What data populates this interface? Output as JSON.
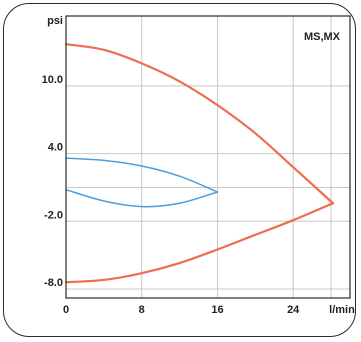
{
  "chart_data": {
    "type": "line",
    "title": "",
    "xlabel": "l/min",
    "ylabel": "psi",
    "annotation": "MS,MX",
    "xlim": [
      0,
      30
    ],
    "ylim": [
      -8.8,
      16.2
    ],
    "x_ticks": [
      {
        "value": 0,
        "label": "0"
      },
      {
        "value": 8,
        "label": "8"
      },
      {
        "value": 16,
        "label": "16"
      },
      {
        "value": 24,
        "label": "24"
      }
    ],
    "y_ticks": [
      {
        "value": 10.0,
        "label": "10.0"
      },
      {
        "value": 4.0,
        "label": "4.0"
      },
      {
        "value": -2.0,
        "label": "-2.0"
      },
      {
        "value": -8.0,
        "label": "-8.0"
      }
    ],
    "x_unit_label": "l/min",
    "y_unit_label": "psi",
    "grid": true,
    "colors": {
      "orange": "#ee6d4f",
      "blue": "#4a9ee0",
      "grid": "#c8c8c8",
      "frame": "#2b2b2b"
    },
    "series": [
      {
        "color": "orange",
        "points": [
          [
            0,
            13.7
          ],
          [
            4,
            13.2
          ],
          [
            8,
            12.0
          ],
          [
            12,
            10.4
          ],
          [
            16,
            8.3
          ],
          [
            20,
            5.8
          ],
          [
            24,
            2.8
          ],
          [
            28.2,
            -0.4
          ]
        ]
      },
      {
        "color": "orange",
        "points": [
          [
            0,
            -7.4
          ],
          [
            4,
            -7.2
          ],
          [
            8,
            -6.6
          ],
          [
            12,
            -5.7
          ],
          [
            16,
            -4.5
          ],
          [
            20,
            -3.2
          ],
          [
            24,
            -1.9
          ],
          [
            28.2,
            -0.4
          ]
        ]
      },
      {
        "color": "blue",
        "points": [
          [
            0,
            3.6
          ],
          [
            4,
            3.4
          ],
          [
            8,
            2.9
          ],
          [
            12,
            2.0
          ],
          [
            16,
            0.6
          ]
        ]
      },
      {
        "color": "blue",
        "points": [
          [
            0,
            0.8
          ],
          [
            4,
            -0.2
          ],
          [
            8,
            -0.7
          ],
          [
            12,
            -0.4
          ],
          [
            16,
            0.6
          ]
        ]
      }
    ]
  }
}
